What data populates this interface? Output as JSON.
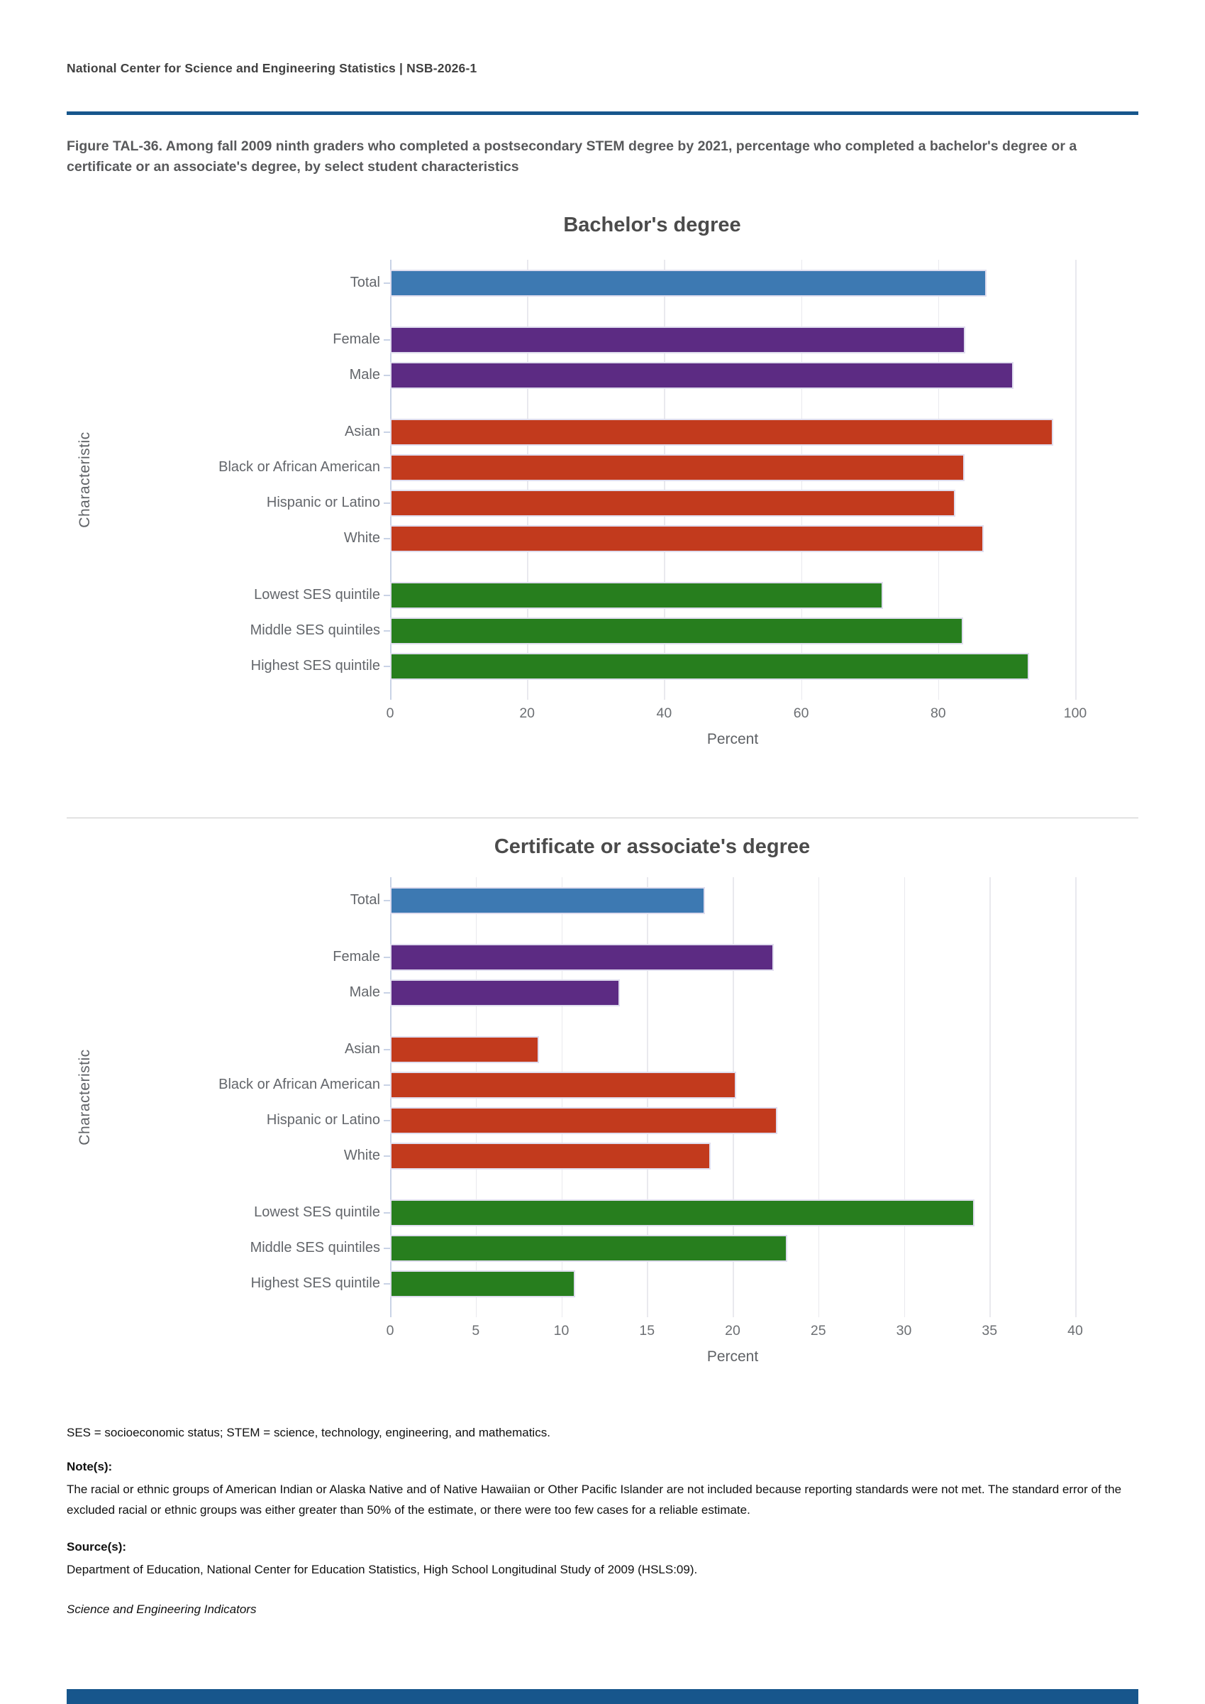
{
  "header": {
    "text": "National Center for Science and Engineering Statistics  |  NSB-2026-1"
  },
  "figure_title": "Figure TAL-36. Among fall 2009 ninth graders who completed a postsecondary STEM degree by 2021, percentage who completed a bachelor's degree or a certificate or an associate's degree, by select student characteristics",
  "colors": {
    "total": "#3d79b2",
    "gender": "#5c2b83",
    "race": "#c23a1d",
    "ses": "#277e1e",
    "accent_rule": "#17568c"
  },
  "chart_data": [
    {
      "type": "bar",
      "orientation": "horizontal",
      "title": "Bachelor's degree",
      "xlabel": "Percent",
      "ylabel": "Characteristic",
      "xlim": [
        0,
        100
      ],
      "xticks": [
        0,
        20,
        40,
        60,
        80,
        100
      ],
      "grid": true,
      "legend": "none",
      "categories": [
        "Total",
        "Female",
        "Male",
        "Asian",
        "Black or African American",
        "Hispanic or Latino",
        "White",
        "Lowest SES quintile",
        "Middle SES quintiles",
        "Highest SES quintile"
      ],
      "values": [
        87.1,
        84.0,
        91.0,
        96.8,
        83.8,
        82.5,
        86.6,
        71.9,
        83.6,
        93.3
      ],
      "color_groups": [
        "total",
        "gender",
        "gender",
        "race",
        "race",
        "race",
        "race",
        "ses",
        "ses",
        "ses"
      ],
      "gap_before": [
        1,
        3,
        7
      ]
    },
    {
      "type": "bar",
      "orientation": "horizontal",
      "title": "Certificate or associate's degree",
      "xlabel": "Percent",
      "ylabel": "Characteristic",
      "xlim": [
        0,
        40
      ],
      "xticks": [
        0,
        5,
        10,
        15,
        20,
        25,
        30,
        35,
        40
      ],
      "grid": true,
      "legend": "none",
      "categories": [
        "Total",
        "Female",
        "Male",
        "Asian",
        "Black or African American",
        "Hispanic or Latino",
        "White",
        "Lowest SES quintile",
        "Middle SES quintiles",
        "Highest SES quintile"
      ],
      "values": [
        18.4,
        22.4,
        13.4,
        8.7,
        20.2,
        22.6,
        18.7,
        34.1,
        23.2,
        10.8
      ],
      "color_groups": [
        "total",
        "gender",
        "gender",
        "race",
        "race",
        "race",
        "race",
        "ses",
        "ses",
        "ses"
      ],
      "gap_before": [
        1,
        3,
        7
      ]
    }
  ],
  "footnotes": {
    "abbrev": "SES = socioeconomic status; STEM = science, technology, engineering, and mathematics.",
    "notes_label": "Note(s):",
    "notes": "The racial or ethnic groups of American Indian or Alaska Native and of Native Hawaiian or Other Pacific Islander are not included because reporting standards were not met. The standard error of the excluded racial or ethnic groups was either greater than 50% of the estimate, or there were too few cases for a reliable estimate.",
    "sources_label": "Source(s):",
    "sources": "Department of Education, National Center for Education Statistics, High School Longitudinal Study of 2009 (HSLS:09).",
    "attribution": "Science and Engineering Indicators"
  }
}
